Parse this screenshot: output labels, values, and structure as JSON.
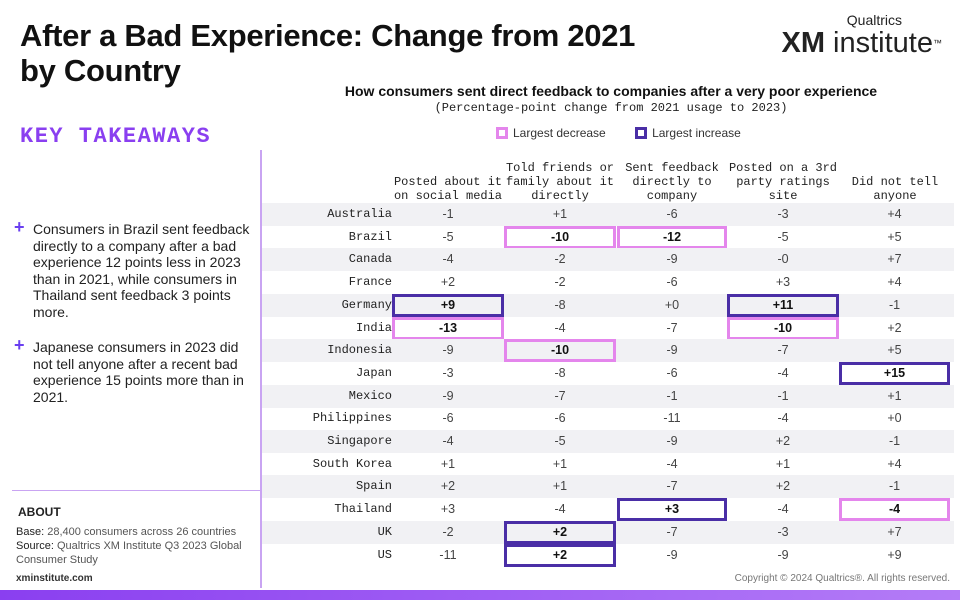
{
  "header": {
    "title": "After a Bad Experience: Change from 2021 by Country",
    "logo_top": "Qualtrics",
    "logo_xm": "XM",
    "logo_rest": "institute",
    "logo_tm": "™"
  },
  "takeaways": {
    "title": "KEY TAKEAWAYS",
    "items": [
      {
        "bullet": "+",
        "text": "Consumers in Brazil sent feedback directly to a company after a bad experience 12 points less in 2023 than in 2021, while consumers in Thailand sent feedback 3 points more."
      },
      {
        "bullet": "+",
        "text": "Japanese consumers in 2023 did not tell anyone after a recent bad experience 15 points more than in 2021."
      }
    ]
  },
  "about": {
    "title": "ABOUT",
    "base_label": "Base:",
    "base_text": "28,400 consumers across 26 countries",
    "source_label": "Source:",
    "source_text": "Qualtrics XM Institute Q3 2023 Global Consumer Study",
    "brand": "xminstitute.com"
  },
  "footer": {
    "copyright": "Copyright © 2024 Qualtrics®. All rights reserved."
  },
  "colors": {
    "accent_purple": "#8a3ff0",
    "largest_decrease": "#e486ec",
    "largest_increase": "#4a2ea6"
  },
  "chart_data": {
    "type": "table",
    "title": "How consumers sent direct feedback to companies after a very poor experience",
    "subtitle": "(Percentage-point change from 2021 usage to 2023)",
    "legend": [
      {
        "label": "Largest decrease",
        "key": "dec"
      },
      {
        "label": "Largest increase",
        "key": "inc"
      }
    ],
    "columns": [
      "Posted about it on social media",
      "Told friends or family about it directly",
      "Sent feedback directly to company",
      "Posted on a 3rd party ratings site",
      "Did not tell anyone"
    ],
    "rows": [
      {
        "country": "Australia",
        "values": [
          "-1",
          "+1",
          "-6",
          "-3",
          "+4"
        ],
        "marks": [
          "",
          "",
          "",
          "",
          ""
        ]
      },
      {
        "country": "Brazil",
        "values": [
          "-5",
          "-10",
          "-12",
          "-5",
          "+5"
        ],
        "marks": [
          "",
          "dec",
          "dec",
          "",
          ""
        ]
      },
      {
        "country": "Canada",
        "values": [
          "-4",
          "-2",
          "-9",
          "-0",
          "+7"
        ],
        "marks": [
          "",
          "",
          "",
          "",
          ""
        ]
      },
      {
        "country": "France",
        "values": [
          "+2",
          "-2",
          "-6",
          "+3",
          "+4"
        ],
        "marks": [
          "",
          "",
          "",
          "",
          ""
        ]
      },
      {
        "country": "Germany",
        "values": [
          "+9",
          "-8",
          "+0",
          "+11",
          "-1"
        ],
        "marks": [
          "inc",
          "",
          "",
          "inc",
          ""
        ]
      },
      {
        "country": "India",
        "values": [
          "-13",
          "-4",
          "-7",
          "-10",
          "+2"
        ],
        "marks": [
          "dec",
          "",
          "",
          "dec",
          ""
        ]
      },
      {
        "country": "Indonesia",
        "values": [
          "-9",
          "-10",
          "-9",
          "-7",
          "+5"
        ],
        "marks": [
          "",
          "dec",
          "",
          "",
          ""
        ]
      },
      {
        "country": "Japan",
        "values": [
          "-3",
          "-8",
          "-6",
          "-4",
          "+15"
        ],
        "marks": [
          "",
          "",
          "",
          "",
          "inc"
        ]
      },
      {
        "country": "Mexico",
        "values": [
          "-9",
          "-7",
          "-1",
          "-1",
          "+1"
        ],
        "marks": [
          "",
          "",
          "",
          "",
          ""
        ]
      },
      {
        "country": "Philippines",
        "values": [
          "-6",
          "-6",
          "-11",
          "-4",
          "+0"
        ],
        "marks": [
          "",
          "",
          "",
          "",
          ""
        ]
      },
      {
        "country": "Singapore",
        "values": [
          "-4",
          "-5",
          "-9",
          "+2",
          "-1"
        ],
        "marks": [
          "",
          "",
          "",
          "",
          ""
        ]
      },
      {
        "country": "South Korea",
        "values": [
          "+1",
          "+1",
          "-4",
          "+1",
          "+4"
        ],
        "marks": [
          "",
          "",
          "",
          "",
          ""
        ]
      },
      {
        "country": "Spain",
        "values": [
          "+2",
          "+1",
          "-7",
          "+2",
          "-1"
        ],
        "marks": [
          "",
          "",
          "",
          "",
          ""
        ]
      },
      {
        "country": "Thailand",
        "values": [
          "+3",
          "-4",
          "+3",
          "-4",
          "-4"
        ],
        "marks": [
          "",
          "",
          "inc",
          "",
          "dec"
        ]
      },
      {
        "country": "UK",
        "values": [
          "-2",
          "+2",
          "-7",
          "-3",
          "+7"
        ],
        "marks": [
          "",
          "inc",
          "",
          "",
          ""
        ]
      },
      {
        "country": "US",
        "values": [
          "-11",
          "+2",
          "-9",
          "-9",
          "+9"
        ],
        "marks": [
          "",
          "inc",
          "",
          "",
          ""
        ]
      }
    ]
  }
}
